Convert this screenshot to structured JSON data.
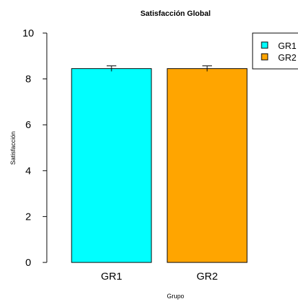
{
  "chart_data": {
    "type": "bar",
    "title": "Satisfacción Global",
    "xlabel": "Grupo",
    "ylabel": "Satisfacción",
    "categories": [
      "GR1",
      "GR2"
    ],
    "values": [
      8.45,
      8.45
    ],
    "error_bars": [
      0.12,
      0.12
    ],
    "ylim": [
      0,
      10
    ],
    "yticks": [
      0,
      2,
      4,
      6,
      8,
      10
    ],
    "colors": [
      "#00FFFF",
      "#FFA500"
    ],
    "grid": false,
    "legend": {
      "position": "top-right",
      "entries": [
        "GR1",
        "GR2"
      ]
    }
  }
}
